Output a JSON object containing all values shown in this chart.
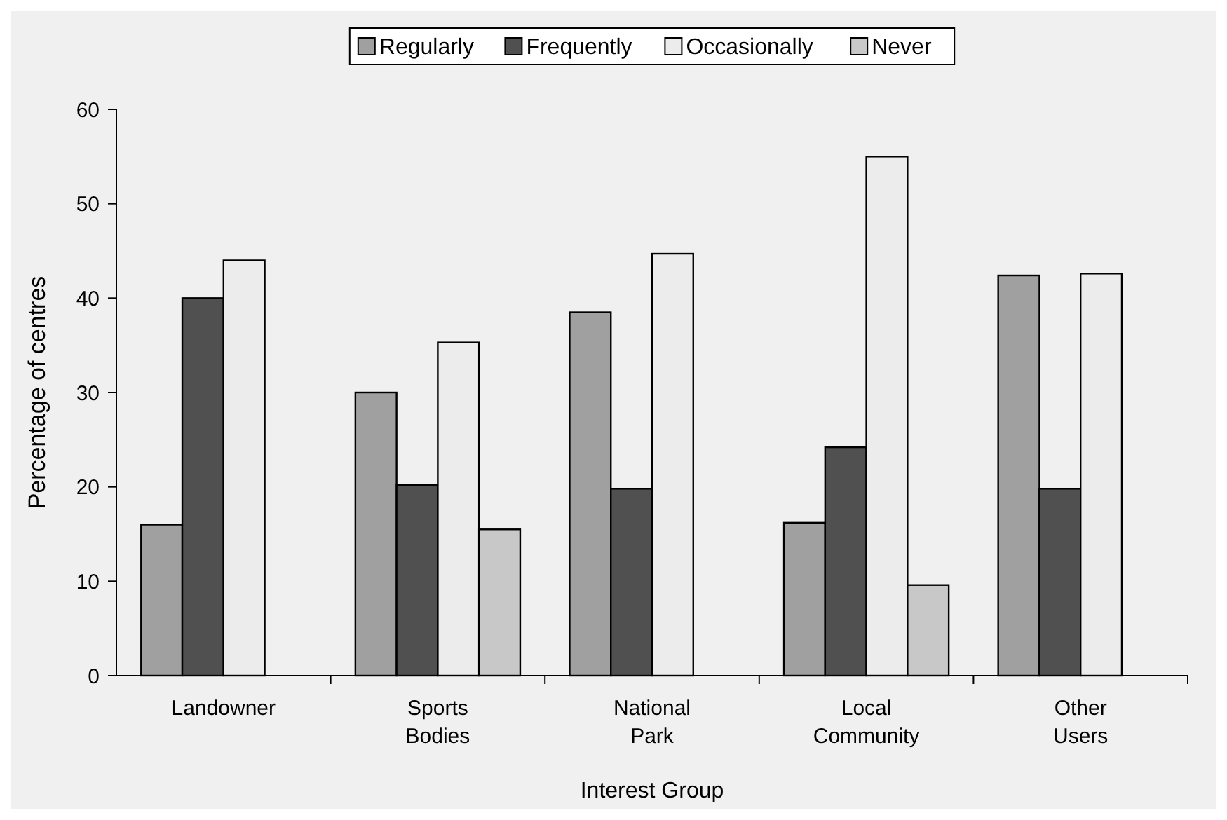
{
  "chart_data": {
    "type": "bar",
    "xlabel": "Interest Group",
    "ylabel": "Percentage of centres",
    "categories": [
      "Landowner",
      "Sports\nBodies",
      "National\nPark",
      "Local\nCommunity",
      "Other\nUsers"
    ],
    "series": [
      {
        "name": "Regularly",
        "color": "#a0a0a0",
        "values": [
          16,
          30,
          38.5,
          16.2,
          42.4
        ]
      },
      {
        "name": "Frequently",
        "color": "#505050",
        "values": [
          40,
          20.2,
          19.8,
          24.2,
          19.8
        ]
      },
      {
        "name": "Occasionally",
        "color": "#ececec",
        "values": [
          44,
          35.3,
          44.7,
          55,
          42.6
        ]
      },
      {
        "name": "Never",
        "color": "#c8c8c8",
        "values": [
          null,
          15.5,
          null,
          9.6,
          null
        ]
      }
    ],
    "ylim": [
      0,
      60
    ],
    "yticks": [
      0,
      10,
      20,
      30,
      40,
      50,
      60
    ],
    "grid": false,
    "legend": "top"
  }
}
